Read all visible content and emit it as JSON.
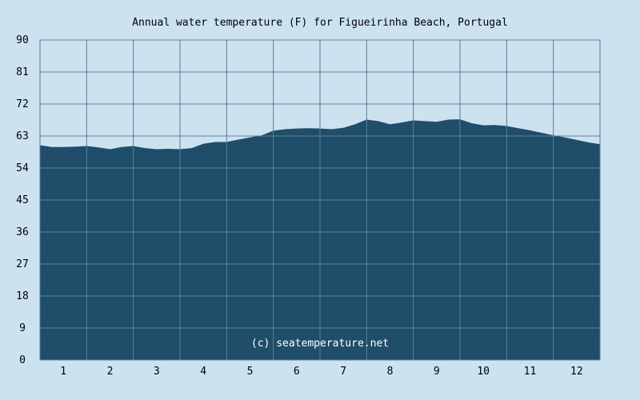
{
  "chart_data": {
    "type": "area",
    "title": "Annual water temperature (F) for Figueirinha Beach, Portugal",
    "xlabel": "",
    "ylabel": "",
    "x_ticks": [
      "1",
      "2",
      "3",
      "4",
      "5",
      "6",
      "7",
      "8",
      "9",
      "10",
      "11",
      "12"
    ],
    "y_ticks": [
      "0",
      "9",
      "18",
      "27",
      "36",
      "45",
      "54",
      "63",
      "72",
      "81",
      "90"
    ],
    "ylim": [
      0,
      90
    ],
    "xlim": [
      0.5,
      12.5
    ],
    "grid": true,
    "annotation": "(c) seatemperature.net",
    "series": [
      {
        "x": [
          0.5,
          0.75,
          1.0,
          1.25,
          1.5,
          1.75,
          2.0,
          2.25,
          2.5,
          2.75,
          3.0,
          3.25,
          3.5,
          3.75,
          4.0,
          4.25,
          4.5,
          4.75,
          5.0,
          5.25,
          5.5,
          5.75,
          6.0,
          6.25,
          6.5,
          6.75,
          7.0,
          7.25,
          7.5,
          7.75,
          8.0,
          8.25,
          8.5,
          8.75,
          9.0,
          9.25,
          9.5,
          9.75,
          10.0,
          10.25,
          10.5,
          10.75,
          11.0,
          11.25,
          11.5,
          11.75,
          12.0,
          12.25,
          12.5
        ],
        "values": [
          60.4,
          59.9,
          59.9,
          60.0,
          60.2,
          59.8,
          59.3,
          59.9,
          60.2,
          59.6,
          59.3,
          59.4,
          59.3,
          59.6,
          60.8,
          61.3,
          61.3,
          62.0,
          62.6,
          63.2,
          64.5,
          64.9,
          65.1,
          65.2,
          65.1,
          64.9,
          65.3,
          66.3,
          67.6,
          67.2,
          66.3,
          66.8,
          67.4,
          67.2,
          67.0,
          67.6,
          67.7,
          66.6,
          66.0,
          66.1,
          65.8,
          65.2,
          64.6,
          63.9,
          63.2,
          62.6,
          61.9,
          61.2,
          60.7
        ],
        "color": "#1f4e6a"
      }
    ],
    "colors": {
      "background": "#cce3ef",
      "plot_background": "#cce3ef",
      "grid": "#5b7e99",
      "area_fill": "#1f4e6a",
      "watermark": "#ffffff"
    }
  }
}
